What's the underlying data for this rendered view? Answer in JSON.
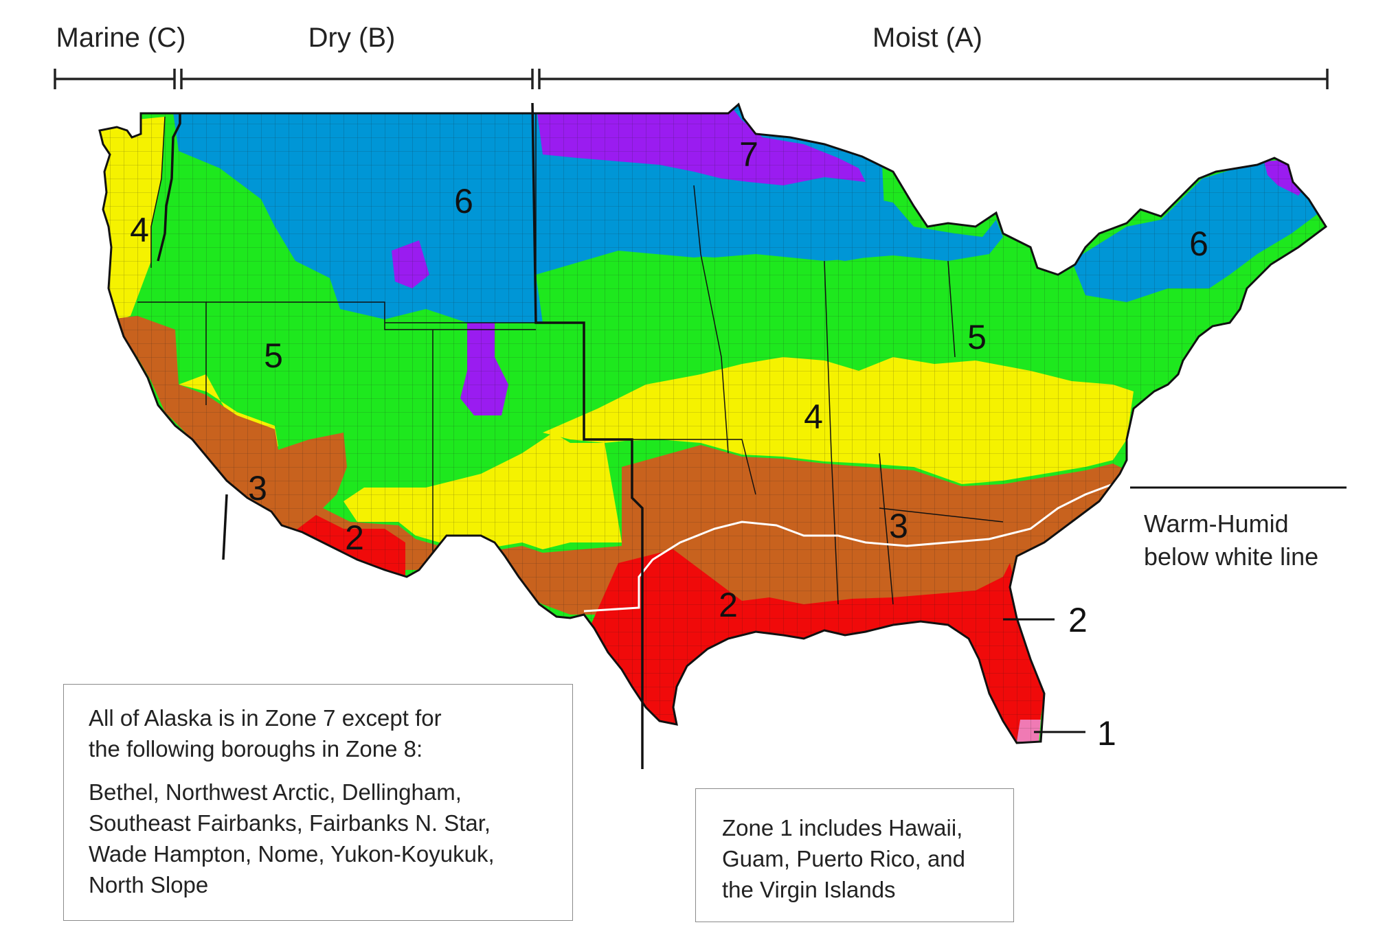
{
  "climate_types": {
    "marine": "Marine (C)",
    "dry": "Dry (B)",
    "moist": "Moist (A)"
  },
  "zones": [
    {
      "id": "z7",
      "label": "7",
      "color": "#9a1cf0"
    },
    {
      "id": "z6a",
      "label": "6",
      "color": "#0096d6"
    },
    {
      "id": "z6b",
      "label": "6",
      "color": "#0096d6"
    },
    {
      "id": "z5a",
      "label": "5",
      "color": "#1ee81e"
    },
    {
      "id": "z5b",
      "label": "5",
      "color": "#1ee81e"
    },
    {
      "id": "z4a",
      "label": "4",
      "color": "#f5f200"
    },
    {
      "id": "z4b",
      "label": "4",
      "color": "#f5f200"
    },
    {
      "id": "z3a",
      "label": "3",
      "color": "#c8621e"
    },
    {
      "id": "z3b",
      "label": "3",
      "color": "#c8621e"
    },
    {
      "id": "z2a",
      "label": "2",
      "color": "#f00a0a"
    },
    {
      "id": "z2b",
      "label": "2",
      "color": "#f00a0a"
    }
  ],
  "zone_colors": {
    "zone1": "#f07ab4",
    "zone2": "#f00a0a",
    "zone3": "#c8621e",
    "zone4": "#f5f200",
    "zone5": "#1ee81e",
    "zone6": "#0096d6",
    "zone7": "#9a1cf0"
  },
  "callouts": {
    "warm_humid_line1": "Warm-Humid",
    "warm_humid_line2": "below white line",
    "florida_zone2": "2",
    "florida_zone1": "1"
  },
  "alaska_note": {
    "line1": "All of Alaska is in Zone 7 except for",
    "line2": "the following boroughs in Zone 8:",
    "list1": "Bethel, Northwest Arctic, Dellingham,",
    "list2": "Southeast Fairbanks, Fairbanks N. Star,",
    "list3": "Wade Hampton, Nome, Yukon-Koyukuk,",
    "list4": "North Slope"
  },
  "zone1_note": {
    "line1": "Zone 1 includes Hawaii,",
    "line2": "Guam, Puerto Rico, and",
    "line3": "the Virgin Islands"
  }
}
